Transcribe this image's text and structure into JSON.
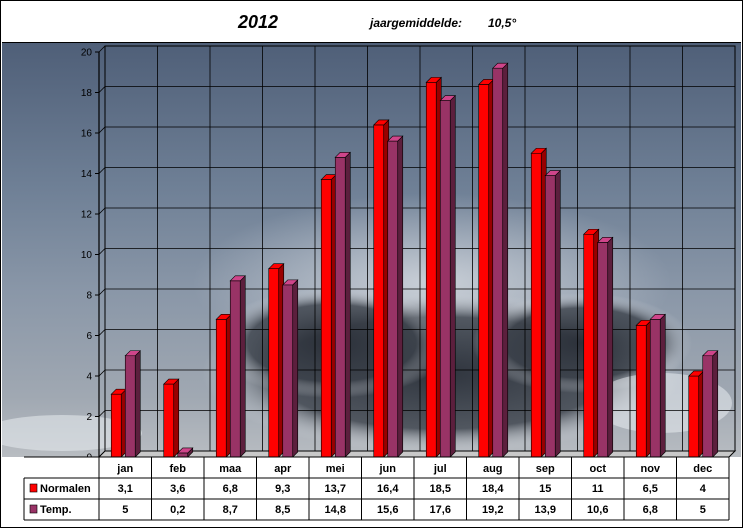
{
  "header": {
    "year": "2012",
    "mean_label": "jaargemiddelde:",
    "mean_value": "10,5°"
  },
  "colors": {
    "normalen": "#ff0000",
    "temp": "#993366",
    "grid": "#000000"
  },
  "chart_data": {
    "type": "bar",
    "title": "2012",
    "categories": [
      "jan",
      "feb",
      "maa",
      "apr",
      "mei",
      "jun",
      "jul",
      "aug",
      "sep",
      "oct",
      "nov",
      "dec"
    ],
    "series": [
      {
        "name": "Normalen",
        "values": [
          3.1,
          3.6,
          6.8,
          9.3,
          13.7,
          16.4,
          18.5,
          18.4,
          15,
          11,
          6.5,
          4
        ],
        "labels": [
          "3,1",
          "3,6",
          "6,8",
          "9,3",
          "13,7",
          "16,4",
          "18,5",
          "18,4",
          "15",
          "11",
          "6,5",
          "4"
        ]
      },
      {
        "name": "Temp.",
        "values": [
          5,
          0.2,
          8.7,
          8.5,
          14.8,
          15.6,
          17.6,
          19.2,
          13.9,
          10.6,
          6.8,
          5
        ],
        "labels": [
          "5",
          "0,2",
          "8,7",
          "8,5",
          "14,8",
          "15,6",
          "17,6",
          "19,2",
          "13,9",
          "10,6",
          "6,8",
          "5"
        ]
      }
    ],
    "ylim": [
      0,
      20
    ],
    "yticks": [
      0,
      2,
      4,
      6,
      8,
      10,
      12,
      14,
      16,
      18,
      20
    ],
    "grid": true,
    "legend": "data-table"
  }
}
